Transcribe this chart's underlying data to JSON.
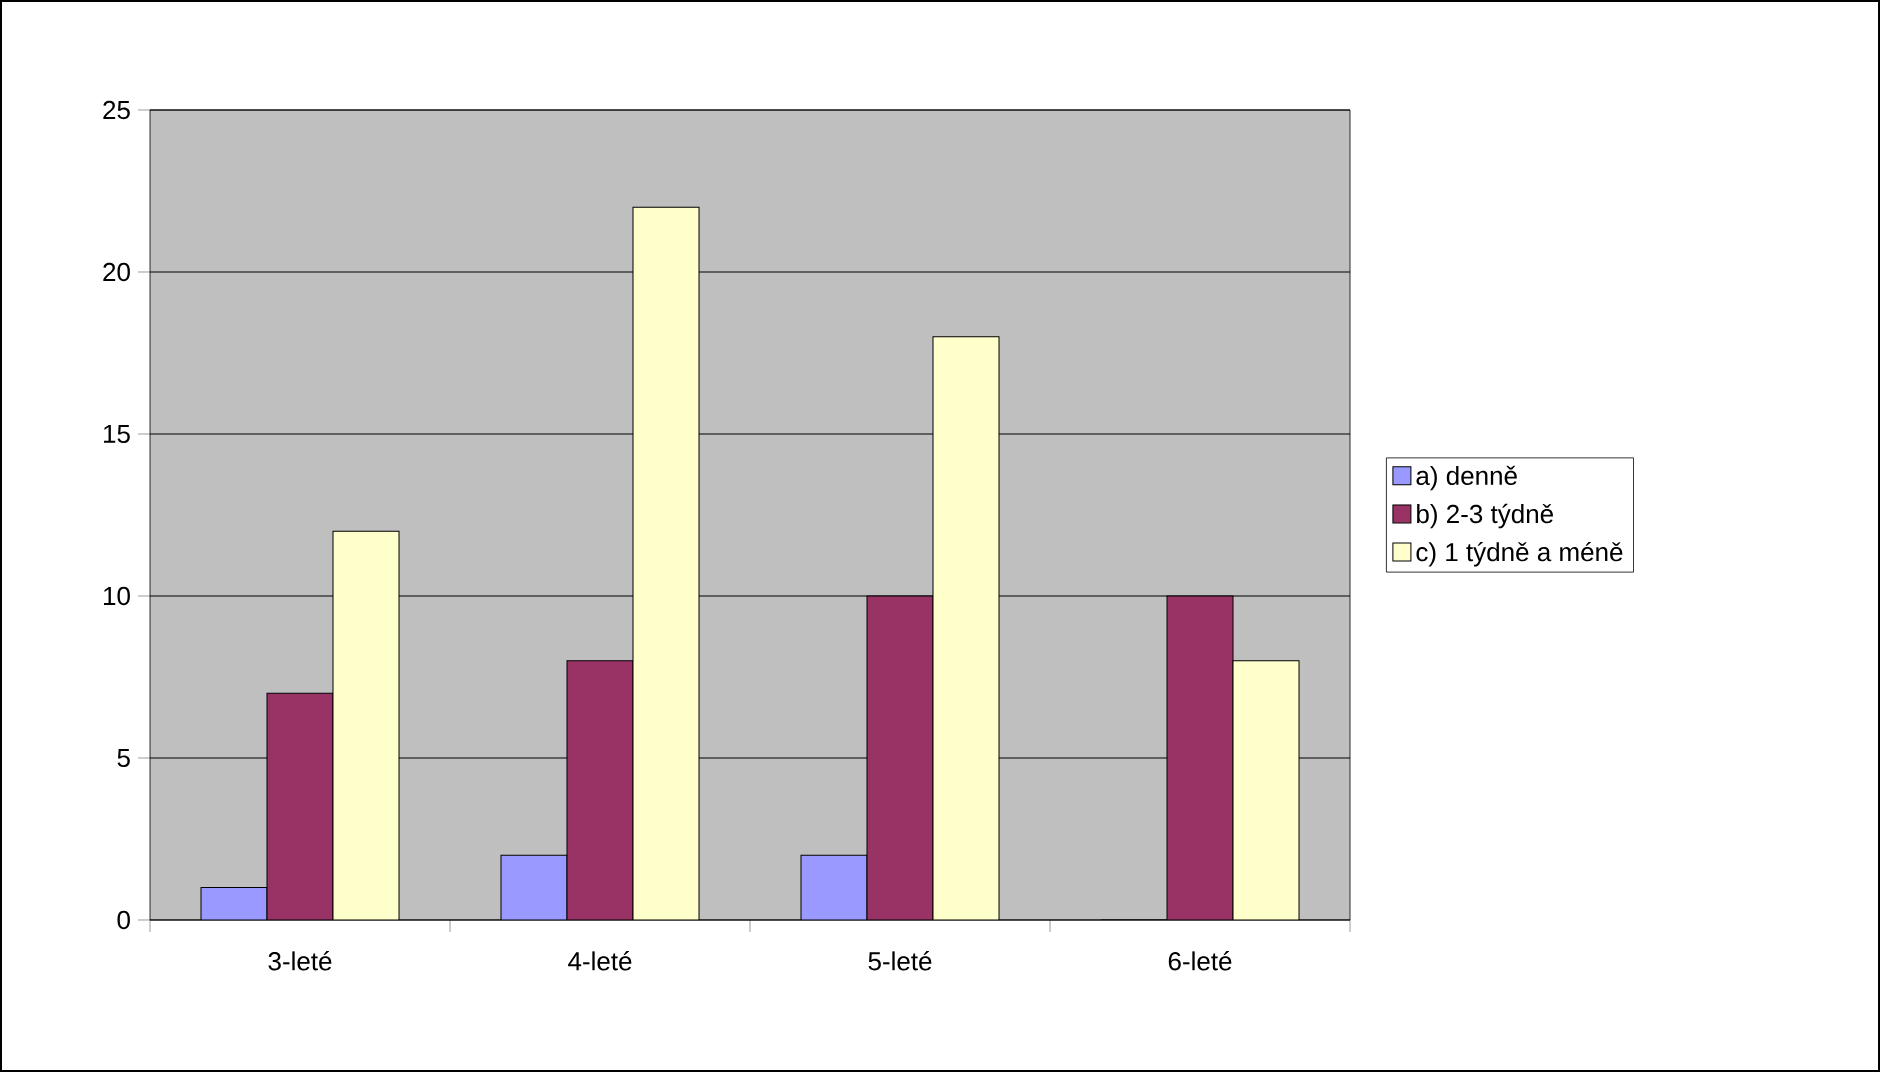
{
  "chart_data": {
    "type": "bar",
    "categories": [
      "3-leté",
      "4-leté",
      "5-leté",
      "6-leté"
    ],
    "series": [
      {
        "name": "a) denně",
        "color": "#9999ff",
        "values": [
          1,
          2,
          2,
          0
        ]
      },
      {
        "name": "b) 2-3 týdně",
        "color": "#993366",
        "values": [
          7,
          8,
          10,
          10
        ]
      },
      {
        "name": "c) 1 týdně a méně",
        "color": "#ffffcc",
        "values": [
          12,
          22,
          18,
          8
        ]
      }
    ],
    "ylim": [
      0,
      25
    ],
    "yticks": [
      0,
      5,
      10,
      15,
      20,
      25
    ],
    "grid": "y",
    "legend": "right"
  }
}
